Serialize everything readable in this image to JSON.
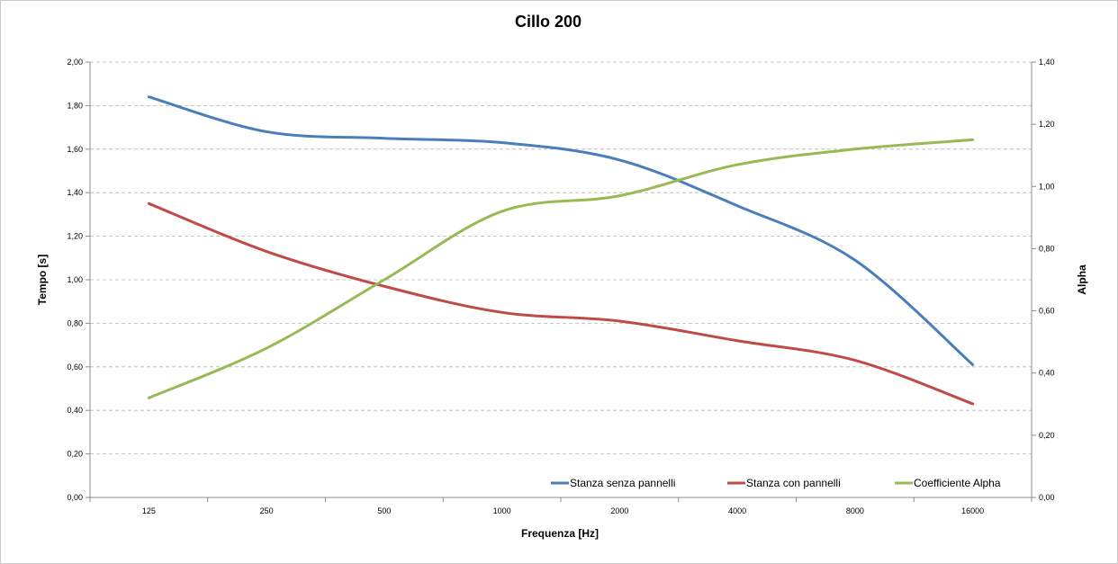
{
  "chart_data": {
    "type": "line",
    "title": "Cillo 200",
    "xlabel": "Frequenza [Hz]",
    "ylabel": "Tempo [s]",
    "y2label": "Alpha",
    "categories": [
      "125",
      "250",
      "500",
      "1000",
      "2000",
      "4000",
      "8000",
      "16000"
    ],
    "ylim": [
      0,
      2
    ],
    "y2lim": [
      0,
      1.4
    ],
    "yticks": [
      "0,00",
      "0,20",
      "0,40",
      "0,60",
      "0,80",
      "1,00",
      "1,20",
      "1,40",
      "1,60",
      "1,80",
      "2,00"
    ],
    "y2ticks": [
      "0,00",
      "0,20",
      "0,40",
      "0,60",
      "0,80",
      "1,00",
      "1,20",
      "1,40"
    ],
    "grid": true,
    "legend_position": "bottom-right",
    "series": [
      {
        "name": "Stanza senza pannelli",
        "axis": "left",
        "color": "#4a7ebb",
        "values": [
          1.84,
          1.68,
          1.65,
          1.63,
          1.55,
          1.34,
          1.09,
          0.61
        ]
      },
      {
        "name": "Stanza con pannelli",
        "axis": "left",
        "color": "#be4b48",
        "values": [
          1.35,
          1.13,
          0.97,
          0.85,
          0.81,
          0.72,
          0.63,
          0.43
        ]
      },
      {
        "name": "Coefficiente Alpha",
        "axis": "right",
        "color": "#98b954",
        "values": [
          0.32,
          0.48,
          0.7,
          0.92,
          0.97,
          1.07,
          1.12,
          1.15
        ]
      }
    ]
  }
}
